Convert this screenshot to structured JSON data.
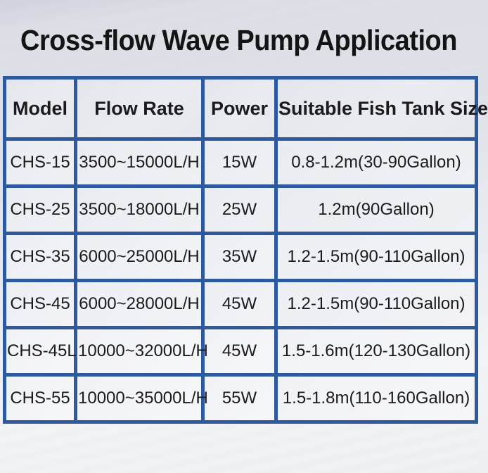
{
  "title": "Cross-flow Wave Pump Application",
  "chart_data": {
    "type": "table",
    "title": "Cross-flow Wave Pump Application",
    "columns": [
      "Model",
      "Flow Rate",
      "Power",
      "Suitable Fish Tank Size"
    ],
    "rows": [
      [
        "CHS-15",
        "3500~15000L/H",
        "15W",
        "0.8-1.2m(30-90Gallon)"
      ],
      [
        "CHS-25",
        "3500~18000L/H",
        "25W",
        "1.2m(90Gallon)"
      ],
      [
        "CHS-35",
        "6000~25000L/H",
        "35W",
        "1.2-1.5m(90-110Gallon)"
      ],
      [
        "CHS-45",
        "6000~28000L/H",
        "45W",
        "1.2-1.5m(90-110Gallon)"
      ],
      [
        "CHS-45L",
        "10000~32000L/H",
        "45W",
        "1.5-1.6m(120-130Gallon)"
      ],
      [
        "CHS-55",
        "10000~35000L/H",
        "55W",
        "1.5-1.8m(110-160Gallon)"
      ]
    ],
    "column_keys": [
      "model",
      "flow-rate",
      "power",
      "tank-size"
    ]
  },
  "colors": {
    "table_border": "#2d5a9e",
    "title_text": "#141414",
    "cell_text": "#1b1b1d",
    "cell_background": "#edeff3",
    "page_background_top": "#dcdee6",
    "page_background_bottom": "#f2f3f6"
  }
}
